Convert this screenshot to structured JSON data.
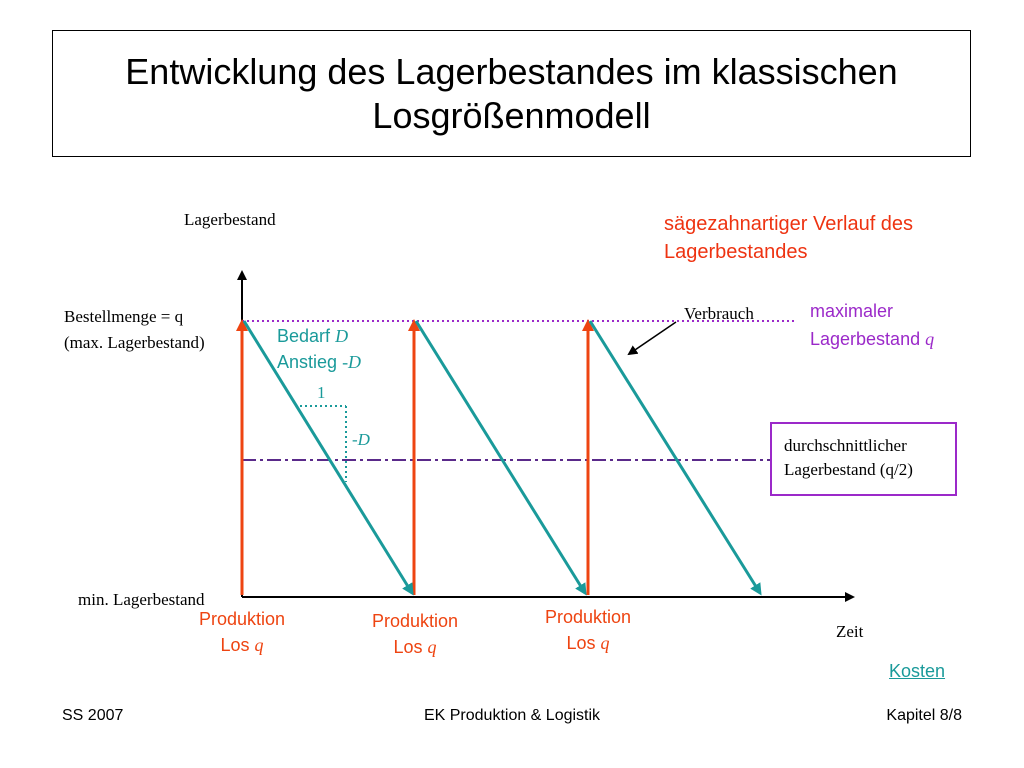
{
  "slide": {
    "title": "Entwicklung des Lagerbestandes im klassischen Losgrößenmodell",
    "y_axis_label": "Lagerbestand",
    "x_axis_label": "Zeit",
    "order_qty_label_line1": "Bestellmenge = q",
    "order_qty_label_line2": "(max. Lagerbestand)",
    "min_stock_label": "min. Lagerbestand",
    "sawtooth_note_line1": "sägezahnartiger Verlauf des",
    "sawtooth_note_line2": "Lagerbestandes",
    "consumption_label": "Verbrauch",
    "max_stock_line1": "maximaler",
    "max_stock_line2": "Lagerbestand",
    "max_stock_var": "q",
    "demand_text": "Bedarf",
    "demand_var": "D",
    "slope_text": "Anstieg",
    "slope_var": "-D",
    "triangle_one": "1",
    "triangle_minus_d": "-D",
    "avg_line1": "durchschnittlicher",
    "avg_line2": "Lagerbestand (q/2)",
    "production_batches": [
      {
        "line1": "Produktion",
        "line2": "Los",
        "var": "q"
      },
      {
        "line1": "Produktion",
        "line2": "Los",
        "var": "q"
      },
      {
        "line1": "Produktion",
        "line2": "Los",
        "var": "q"
      }
    ],
    "link_label": "Kosten"
  },
  "footer": {
    "left": "SS 2007",
    "center": "EK Produktion & Logistik",
    "right": "Kapitel 8/8"
  },
  "colors": {
    "production": "#ee4411",
    "consumption": "#1a9a9a",
    "max_line": "#9b29c9",
    "note": "#ee3311"
  }
}
